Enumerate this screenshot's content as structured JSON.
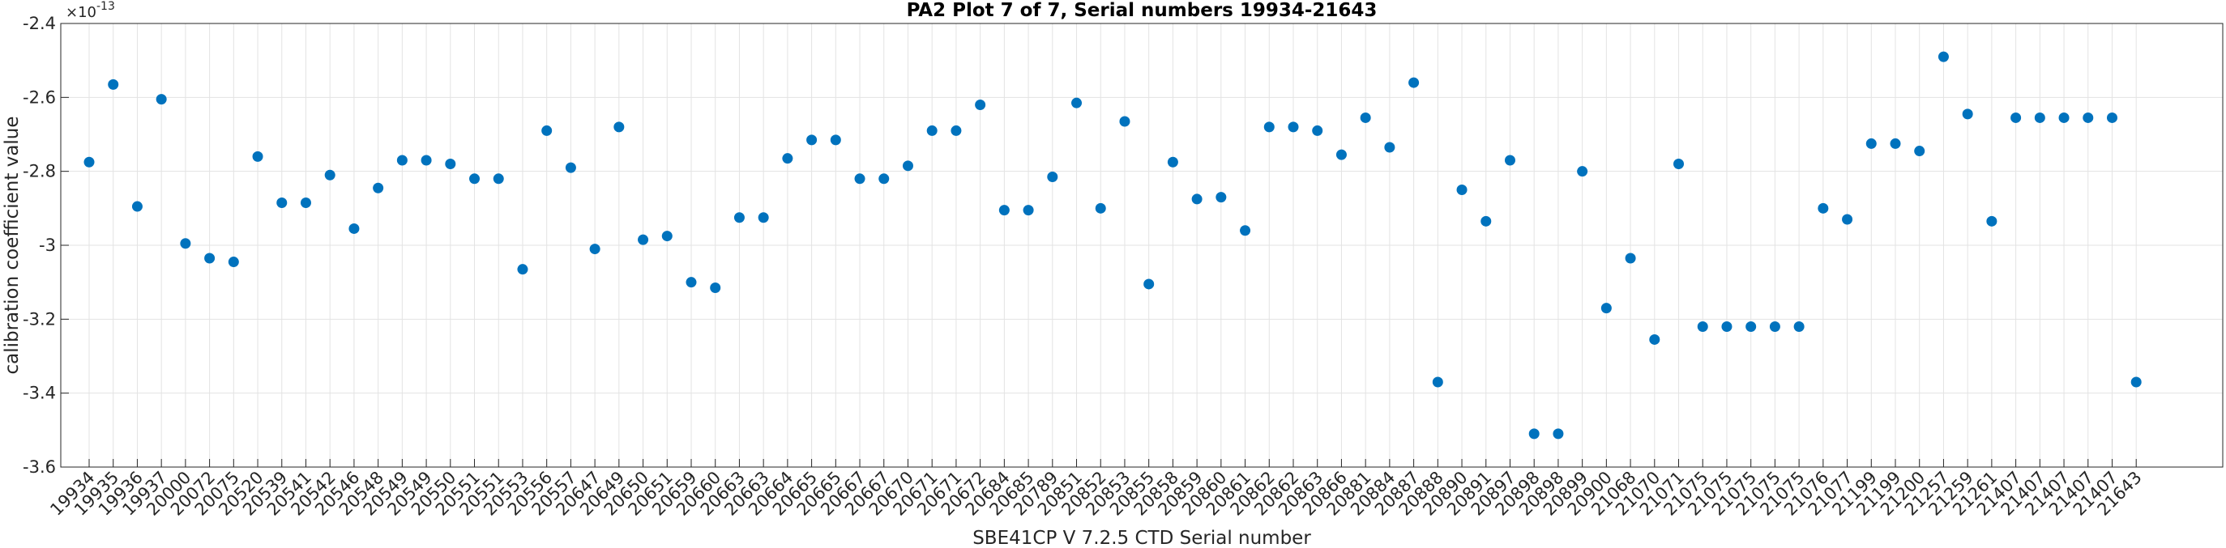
{
  "chart_data": {
    "type": "scatter",
    "title": "PA2 Plot 7 of 7, Serial numbers 19934-21643",
    "xlabel": "SBE41CP V 7.2.5 CTD Serial number",
    "ylabel": "calibration coefficient value",
    "y_exponent_label": "×10",
    "y_exponent_power": "-13",
    "ylim": [
      -3.6,
      -2.4
    ],
    "yticks": [
      -3.6,
      -3.4,
      -3.2,
      -3.0,
      -2.8,
      -2.6,
      -2.4
    ],
    "ytick_labels": [
      "-3.6",
      "-3.4",
      "-3.2",
      "-3",
      "-2.8",
      "-2.6",
      "-2.4"
    ],
    "grid": true,
    "point_color": "#0072BD",
    "categories": [
      "19934",
      "19935",
      "19936",
      "19937",
      "20000",
      "20072",
      "20075",
      "20520",
      "20539",
      "20541",
      "20542",
      "20546",
      "20548",
      "20549",
      "20549",
      "20550",
      "20551",
      "20551",
      "20553",
      "20556",
      "20557",
      "20647",
      "20649",
      "20650",
      "20651",
      "20659",
      "20660",
      "20663",
      "20663",
      "20664",
      "20665",
      "20665",
      "20667",
      "20667",
      "20670",
      "20671",
      "20671",
      "20672",
      "20684",
      "20685",
      "20789",
      "20851",
      "20852",
      "20853",
      "20855",
      "20858",
      "20859",
      "20860",
      "20861",
      "20862",
      "20862",
      "20863",
      "20866",
      "20881",
      "20884",
      "20887",
      "20888",
      "20890",
      "20891",
      "20897",
      "20898",
      "20898",
      "20899",
      "20900",
      "21068",
      "21070",
      "21071",
      "21075",
      "21075",
      "21075",
      "21075",
      "21075",
      "21076",
      "21077",
      "21199",
      "21199",
      "21200",
      "21257",
      "21259",
      "21261",
      "21407",
      "21407",
      "21407",
      "21407",
      "21407",
      "21643"
    ],
    "values": [
      -2.775,
      -2.565,
      -2.895,
      -2.605,
      -2.995,
      -3.035,
      -3.045,
      -2.76,
      -2.885,
      -2.885,
      -2.81,
      -2.955,
      -2.845,
      -2.77,
      -2.77,
      -2.78,
      -2.82,
      -2.82,
      -3.065,
      -2.69,
      -2.79,
      -3.01,
      -2.68,
      -2.985,
      -2.975,
      -3.1,
      -3.115,
      -2.925,
      -2.925,
      -2.765,
      -2.715,
      -2.715,
      -2.82,
      -2.82,
      -2.785,
      -2.69,
      -2.69,
      -2.62,
      -2.905,
      -2.905,
      -2.815,
      -2.615,
      -2.9,
      -2.665,
      -3.105,
      -2.775,
      -2.875,
      -2.87,
      -2.96,
      -2.68,
      -2.68,
      -2.69,
      -2.755,
      -2.655,
      -2.735,
      -2.56,
      -3.37,
      -2.85,
      -2.935,
      -2.77,
      -3.51,
      -3.51,
      -2.8,
      -3.17,
      -3.035,
      -3.255,
      -2.78,
      -3.22,
      -3.22,
      -3.22,
      -3.22,
      -3.22,
      -2.9,
      -2.93,
      -2.725,
      -2.725,
      -2.745,
      -2.49,
      -2.645,
      -2.935,
      -2.655,
      -2.655,
      -2.655,
      -2.655,
      -2.655,
      -3.37
    ]
  }
}
